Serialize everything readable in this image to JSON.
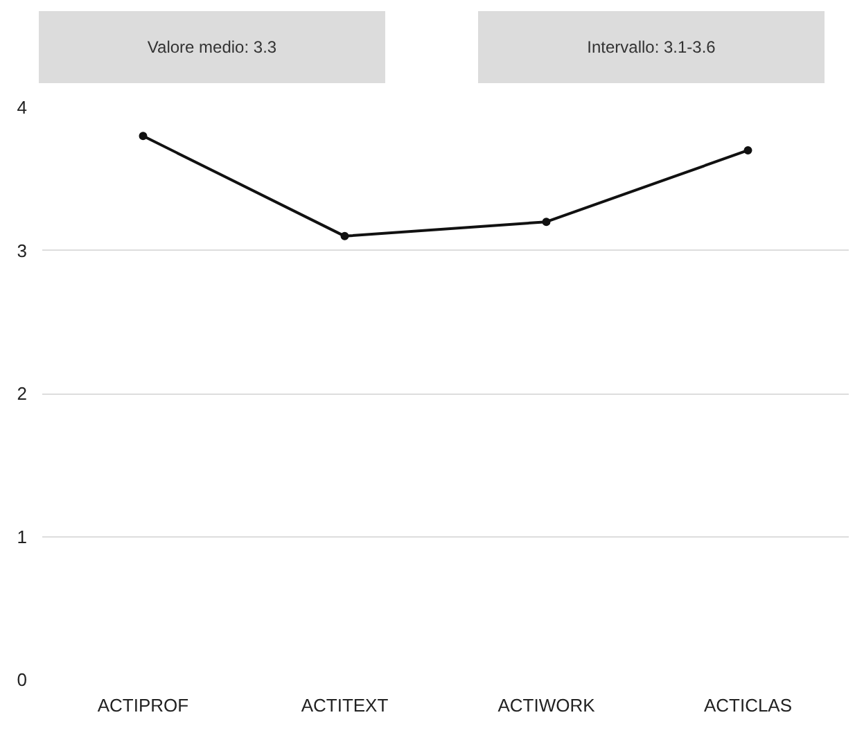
{
  "chart_data": {
    "type": "line",
    "categories": [
      "ACTIPROF",
      "ACTITEXT",
      "ACTIWORK",
      "ACTICLAS"
    ],
    "series": [
      {
        "color": "#111111",
        "values": [
          3.8,
          3.1,
          3.2,
          3.7
        ]
      }
    ],
    "ylim": [
      0,
      4
    ],
    "yticks": [
      0,
      1,
      2,
      3,
      4
    ],
    "grid": "y",
    "marker": "circle",
    "line_style": "solid",
    "annotations": [
      "Valore medio: 3.3",
      "Intervallo: 3.1-3.6"
    ]
  }
}
